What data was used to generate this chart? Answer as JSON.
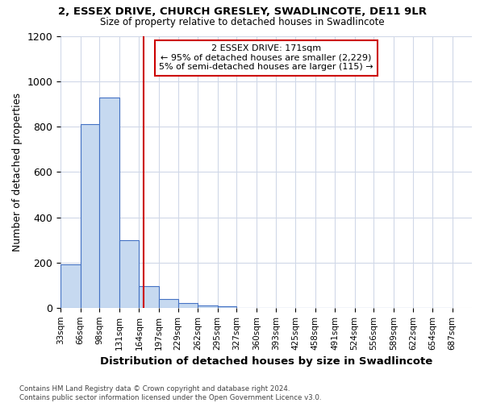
{
  "title1": "2, ESSEX DRIVE, CHURCH GRESLEY, SWADLINCOTE, DE11 9LR",
  "title2": "Size of property relative to detached houses in Swadlincote",
  "xlabel": "Distribution of detached houses by size in Swadlincote",
  "ylabel": "Number of detached properties",
  "bin_edges": [
    33,
    66,
    98,
    131,
    164,
    197,
    229,
    262,
    295,
    327,
    360,
    393,
    425,
    458,
    491,
    524,
    556,
    589,
    622,
    654,
    687
  ],
  "bar_heights": [
    190,
    810,
    930,
    300,
    95,
    40,
    20,
    10,
    5,
    0,
    0,
    0,
    0,
    0,
    0,
    0,
    0,
    0,
    0,
    0
  ],
  "bar_color": "#c6d9f0",
  "bar_edgecolor": "#4472c4",
  "property_size": 171,
  "vline_color": "#cc0000",
  "annotation_text": "2 ESSEX DRIVE: 171sqm\n← 95% of detached houses are smaller (2,229)\n5% of semi-detached houses are larger (115) →",
  "annotation_box_color": "#cc0000",
  "ylim": [
    0,
    1200
  ],
  "yticks": [
    0,
    200,
    400,
    600,
    800,
    1000,
    1200
  ],
  "xtick_labels": [
    "33sqm",
    "66sqm",
    "98sqm",
    "131sqm",
    "164sqm",
    "197sqm",
    "229sqm",
    "262sqm",
    "295sqm",
    "327sqm",
    "360sqm",
    "393sqm",
    "425sqm",
    "458sqm",
    "491sqm",
    "524sqm",
    "556sqm",
    "589sqm",
    "622sqm",
    "654sqm",
    "687sqm"
  ],
  "footnote": "Contains HM Land Registry data © Crown copyright and database right 2024.\nContains public sector information licensed under the Open Government Licence v3.0.",
  "background_color": "#ffffff",
  "grid_color": "#d0d8e8"
}
